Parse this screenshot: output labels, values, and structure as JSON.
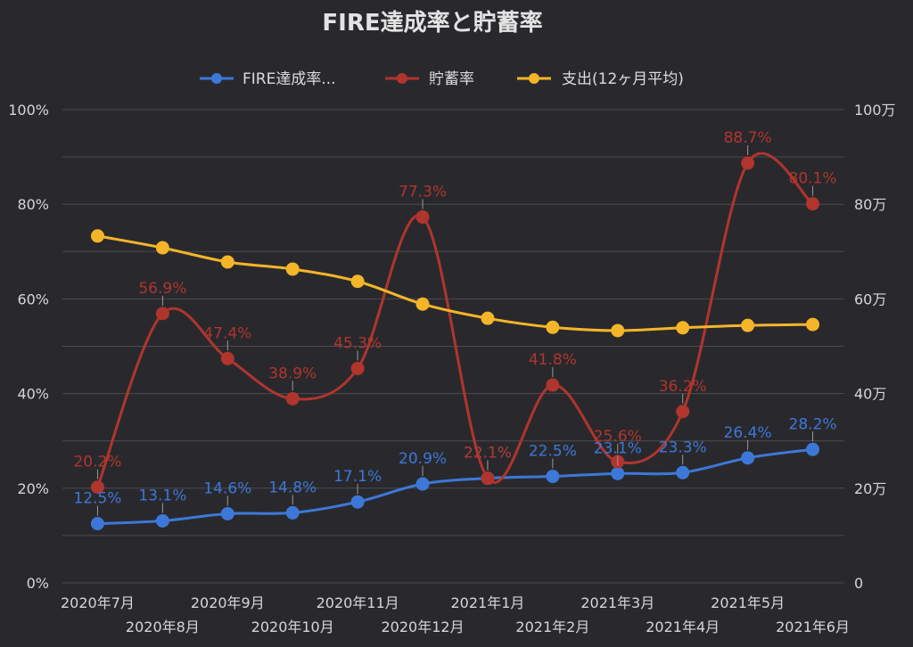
{
  "chart_data": {
    "type": "line",
    "title": "FIRE達成率と貯蓄率",
    "categories": [
      "2020年7月",
      "2020年8月",
      "2020年9月",
      "2020年10月",
      "2020年11月",
      "2020年12月",
      "2021年1月",
      "2021年2月",
      "2021年3月",
      "2021年4月",
      "2021年5月",
      "2021年6月"
    ],
    "series": [
      {
        "name": "FIRE達成率...",
        "axis": "left",
        "color": "#3d78d8",
        "values": [
          12.5,
          13.1,
          14.6,
          14.8,
          17.1,
          20.9,
          22.1,
          22.5,
          23.1,
          23.3,
          26.4,
          28.2
        ],
        "data_labels": true,
        "label_suffix": "%"
      },
      {
        "name": "貯蓄率",
        "axis": "left",
        "color": "#b0352d",
        "values": [
          20.2,
          56.9,
          47.4,
          38.9,
          45.3,
          77.3,
          22.1,
          41.8,
          25.6,
          36.2,
          88.7,
          80.1
        ],
        "data_labels": true,
        "label_suffix": "%"
      },
      {
        "name": "支出(12ヶ月平均)",
        "axis": "right",
        "color": "#f4b529",
        "values": [
          73.3,
          70.8,
          67.8,
          66.3,
          63.7,
          58.9,
          55.9,
          54.0,
          53.3,
          53.9,
          54.4,
          54.6
        ],
        "data_labels": false
      }
    ],
    "y_axis_left": {
      "min": 0,
      "max": 100,
      "gridline_step": 10,
      "ticks": [
        {
          "value": 0,
          "label": "0%"
        },
        {
          "value": 20,
          "label": "20%"
        },
        {
          "value": 40,
          "label": "40%"
        },
        {
          "value": 60,
          "label": "60%"
        },
        {
          "value": 80,
          "label": "80%"
        },
        {
          "value": 100,
          "label": "100%"
        }
      ]
    },
    "y_axis_right": {
      "min": 0,
      "max": 100,
      "ticks": [
        {
          "value": 0,
          "label": "0"
        },
        {
          "value": 20,
          "label": "20万"
        },
        {
          "value": 40,
          "label": "40万"
        },
        {
          "value": 60,
          "label": "60万"
        },
        {
          "value": 80,
          "label": "80万"
        },
        {
          "value": 100,
          "label": "100万"
        }
      ]
    },
    "legend_position": "top",
    "grid": true,
    "curve": "smooth",
    "colors": {
      "background": "#29292d",
      "text": "#d6d6d6",
      "gridline": "#4c4c50",
      "leader_line": "#9a9a9a"
    }
  }
}
